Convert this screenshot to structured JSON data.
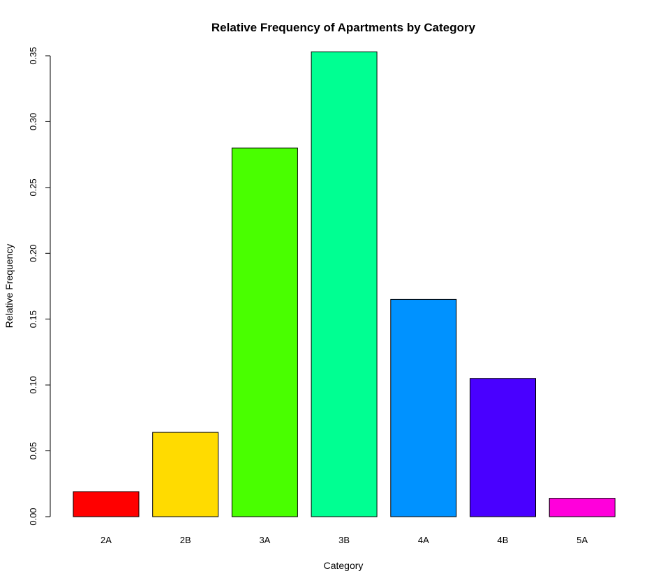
{
  "chart_data": {
    "type": "bar",
    "title": "Relative Frequency of Apartments by Category",
    "xlabel": "Category",
    "ylabel": "Relative Frequency",
    "categories": [
      "2A",
      "2B",
      "3A",
      "3B",
      "4A",
      "4B",
      "5A"
    ],
    "values": [
      0.019,
      0.064,
      0.28,
      0.353,
      0.165,
      0.105,
      0.014
    ],
    "colors": [
      "#FF0000",
      "#FFDB00",
      "#49FF00",
      "#00FF92",
      "#0092FF",
      "#4900FF",
      "#FF00DB"
    ],
    "yticks": [
      "0.00",
      "0.05",
      "0.10",
      "0.15",
      "0.20",
      "0.25",
      "0.30",
      "0.35"
    ],
    "ylim": [
      0,
      0.35
    ],
    "grid": false,
    "legend": "none"
  }
}
